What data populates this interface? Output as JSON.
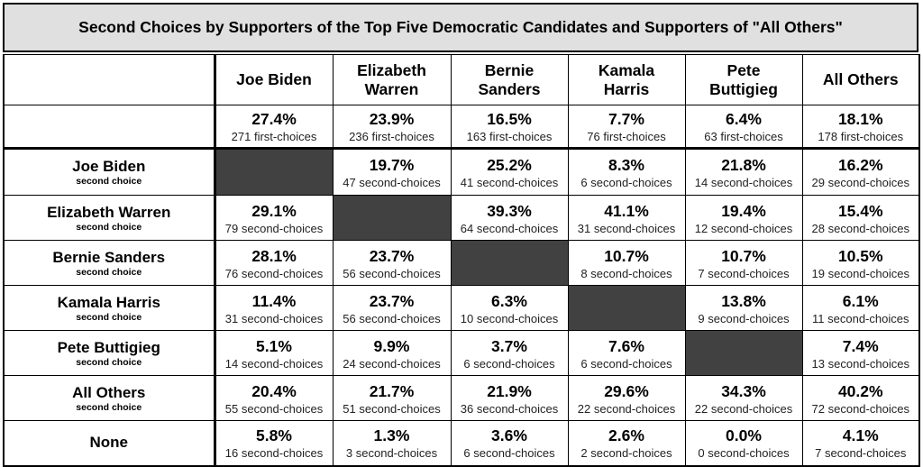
{
  "chart_data": {
    "type": "table",
    "title": "Second Choices by Supporters of the Top Five Democratic Candidates and Supporters of \"All Others\"",
    "columns": [
      {
        "name": "Joe Biden",
        "pct": "27.4%",
        "count": "271 first-choices"
      },
      {
        "name": "Elizabeth Warren",
        "pct": "23.9%",
        "count": "236 first-choices"
      },
      {
        "name": "Bernie Sanders",
        "pct": "16.5%",
        "count": "163 first-choices"
      },
      {
        "name": "Kamala Harris",
        "pct": "7.7%",
        "count": "76 first-choices"
      },
      {
        "name": "Pete Buttigieg",
        "pct": "6.4%",
        "count": "63 first-choices"
      },
      {
        "name": "All Others",
        "pct": "18.1%",
        "count": "178 first-choices"
      }
    ],
    "rows": [
      {
        "name": "Joe Biden",
        "sub": "second choice",
        "cells": [
          null,
          {
            "pct": "19.7%",
            "count": "47 second-choices"
          },
          {
            "pct": "25.2%",
            "count": "41 second-choices"
          },
          {
            "pct": "8.3%",
            "count": "6 second-choices"
          },
          {
            "pct": "21.8%",
            "count": "14 second-choices"
          },
          {
            "pct": "16.2%",
            "count": "29 second-choices"
          }
        ]
      },
      {
        "name": "Elizabeth Warren",
        "sub": "second choice",
        "cells": [
          {
            "pct": "29.1%",
            "count": "79 second-choices"
          },
          null,
          {
            "pct": "39.3%",
            "count": "64 second-choices"
          },
          {
            "pct": "41.1%",
            "count": "31 second-choices"
          },
          {
            "pct": "19.4%",
            "count": "12 second-choices"
          },
          {
            "pct": "15.4%",
            "count": "28 second-choices"
          }
        ]
      },
      {
        "name": "Bernie Sanders",
        "sub": "second choice",
        "cells": [
          {
            "pct": "28.1%",
            "count": "76 second-choices"
          },
          {
            "pct": "23.7%",
            "count": "56 second-choices"
          },
          null,
          {
            "pct": "10.7%",
            "count": "8 second-choices"
          },
          {
            "pct": "10.7%",
            "count": "7 second-choices"
          },
          {
            "pct": "10.5%",
            "count": "19 second-choices"
          }
        ]
      },
      {
        "name": "Kamala Harris",
        "sub": "second choice",
        "cells": [
          {
            "pct": "11.4%",
            "count": "31 second-choices"
          },
          {
            "pct": "23.7%",
            "count": "56 second-choices"
          },
          {
            "pct": "6.3%",
            "count": "10 second-choices"
          },
          null,
          {
            "pct": "13.8%",
            "count": "9 second-choices"
          },
          {
            "pct": "6.1%",
            "count": "11 second-choices"
          }
        ]
      },
      {
        "name": "Pete Buttigieg",
        "sub": "second choice",
        "cells": [
          {
            "pct": "5.1%",
            "count": "14 second-choices"
          },
          {
            "pct": "9.9%",
            "count": "24 second-choices"
          },
          {
            "pct": "3.7%",
            "count": "6 second-choices"
          },
          {
            "pct": "7.6%",
            "count": "6 second-choices"
          },
          null,
          {
            "pct": "7.4%",
            "count": "13 second-choices"
          }
        ]
      },
      {
        "name": "All Others",
        "sub": "second choice",
        "cells": [
          {
            "pct": "20.4%",
            "count": "55 second-choices"
          },
          {
            "pct": "21.7%",
            "count": "51 second-choices"
          },
          {
            "pct": "21.9%",
            "count": "36 second-choices"
          },
          {
            "pct": "29.6%",
            "count": "22 second-choices"
          },
          {
            "pct": "34.3%",
            "count": "22 second-choices"
          },
          {
            "pct": "40.2%",
            "count": "72 second-choices"
          }
        ]
      },
      {
        "name": "None",
        "sub": "",
        "cells": [
          {
            "pct": "5.8%",
            "count": "16 second-choices"
          },
          {
            "pct": "1.3%",
            "count": "3 second-choices"
          },
          {
            "pct": "3.6%",
            "count": "6 second-choices"
          },
          {
            "pct": "2.6%",
            "count": "2 second-choices"
          },
          {
            "pct": "0.0%",
            "count": "0 second-choices"
          },
          {
            "pct": "4.1%",
            "count": "7 second-choices"
          }
        ]
      }
    ],
    "colors": {
      "title_bg": "#e0e0e0",
      "blocked_cell": "#414141"
    }
  }
}
